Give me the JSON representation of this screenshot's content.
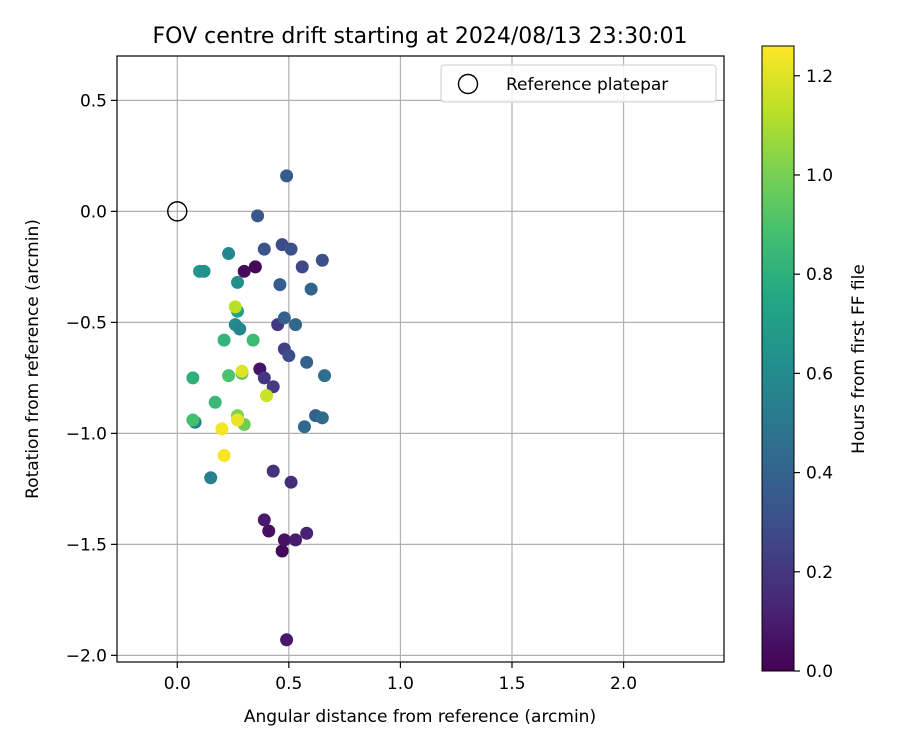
{
  "chart_data": {
    "type": "scatter",
    "title": "FOV centre drift starting at 2024/08/13 23:30:01",
    "xlabel": "Angular distance from reference (arcmin)",
    "ylabel": "Rotation from reference (arcmin)",
    "xlim": [
      -0.27,
      2.45
    ],
    "ylim": [
      -2.03,
      0.7
    ],
    "xticks": [
      0.0,
      0.5,
      1.0,
      1.5,
      2.0
    ],
    "xtick_labels": [
      "0.0",
      "0.5",
      "1.0",
      "1.5",
      "2.0"
    ],
    "yticks": [
      0.5,
      0.0,
      -0.5,
      -1.0,
      -1.5,
      -2.0
    ],
    "ytick_labels": [
      "0.5",
      "0.0",
      "−0.5",
      "−1.0",
      "−1.5",
      "−2.0"
    ],
    "grid": true,
    "legend": {
      "placement": "top-right",
      "entries": [
        "Reference platepar"
      ]
    },
    "reference_point": {
      "x": 0.0,
      "y": 0.0
    },
    "colorbar": {
      "label": "Hours from first FF file",
      "colormap": "viridis",
      "range": [
        0.0,
        1.26
      ],
      "ticks": [
        0.0,
        0.2,
        0.4,
        0.6,
        0.8,
        1.0,
        1.2
      ],
      "tick_labels": [
        "0.0",
        "0.2",
        "0.4",
        "0.6",
        "0.8",
        "1.0",
        "1.2"
      ]
    },
    "points": [
      {
        "x": 0.49,
        "y": -1.93,
        "c": 0.08
      },
      {
        "x": 0.47,
        "y": -1.53,
        "c": 0.03
      },
      {
        "x": 0.48,
        "y": -1.48,
        "c": 0.06
      },
      {
        "x": 0.53,
        "y": -1.48,
        "c": 0.1
      },
      {
        "x": 0.58,
        "y": -1.45,
        "c": 0.12
      },
      {
        "x": 0.41,
        "y": -1.44,
        "c": 0.05
      },
      {
        "x": 0.39,
        "y": -1.39,
        "c": 0.09
      },
      {
        "x": 0.51,
        "y": -1.22,
        "c": 0.16
      },
      {
        "x": 0.43,
        "y": -1.17,
        "c": 0.18
      },
      {
        "x": 0.3,
        "y": -0.27,
        "c": 0.04
      },
      {
        "x": 0.35,
        "y": -0.25,
        "c": 0.02
      },
      {
        "x": 0.37,
        "y": -0.71,
        "c": 0.07
      },
      {
        "x": 0.39,
        "y": -0.75,
        "c": 0.2
      },
      {
        "x": 0.43,
        "y": -0.79,
        "c": 0.22
      },
      {
        "x": 0.45,
        "y": -0.51,
        "c": 0.21
      },
      {
        "x": 0.48,
        "y": -0.62,
        "c": 0.23
      },
      {
        "x": 0.5,
        "y": -0.65,
        "c": 0.3
      },
      {
        "x": 0.49,
        "y": 0.16,
        "c": 0.36
      },
      {
        "x": 0.36,
        "y": -0.02,
        "c": 0.34
      },
      {
        "x": 0.39,
        "y": -0.17,
        "c": 0.33
      },
      {
        "x": 0.47,
        "y": -0.15,
        "c": 0.29
      },
      {
        "x": 0.51,
        "y": -0.17,
        "c": 0.32
      },
      {
        "x": 0.56,
        "y": -0.25,
        "c": 0.28
      },
      {
        "x": 0.65,
        "y": -0.22,
        "c": 0.31
      },
      {
        "x": 0.46,
        "y": -0.33,
        "c": 0.37
      },
      {
        "x": 0.6,
        "y": -0.35,
        "c": 0.41
      },
      {
        "x": 0.48,
        "y": -0.48,
        "c": 0.39
      },
      {
        "x": 0.53,
        "y": -0.51,
        "c": 0.42
      },
      {
        "x": 0.58,
        "y": -0.68,
        "c": 0.4
      },
      {
        "x": 0.66,
        "y": -0.74,
        "c": 0.46
      },
      {
        "x": 0.62,
        "y": -0.92,
        "c": 0.38
      },
      {
        "x": 0.65,
        "y": -0.93,
        "c": 0.44
      },
      {
        "x": 0.57,
        "y": -0.97,
        "c": 0.43
      },
      {
        "x": 0.23,
        "y": -0.19,
        "c": 0.58
      },
      {
        "x": 0.27,
        "y": -0.32,
        "c": 0.62
      },
      {
        "x": 0.1,
        "y": -0.27,
        "c": 0.66
      },
      {
        "x": 0.12,
        "y": -0.27,
        "c": 0.63
      },
      {
        "x": 0.26,
        "y": -0.51,
        "c": 0.6
      },
      {
        "x": 0.28,
        "y": -0.53,
        "c": 0.57
      },
      {
        "x": 0.27,
        "y": -0.45,
        "c": 0.72
      },
      {
        "x": 0.08,
        "y": -0.95,
        "c": 0.55
      },
      {
        "x": 0.15,
        "y": -1.2,
        "c": 0.56
      },
      {
        "x": 0.21,
        "y": -0.58,
        "c": 0.82
      },
      {
        "x": 0.34,
        "y": -0.58,
        "c": 0.86
      },
      {
        "x": 0.07,
        "y": -0.94,
        "c": 0.88
      },
      {
        "x": 0.17,
        "y": -0.86,
        "c": 0.84
      },
      {
        "x": 0.07,
        "y": -0.75,
        "c": 0.8
      },
      {
        "x": 0.23,
        "y": -0.74,
        "c": 0.9
      },
      {
        "x": 0.29,
        "y": -0.73,
        "c": 0.93
      },
      {
        "x": 0.3,
        "y": -0.96,
        "c": 0.98
      },
      {
        "x": 0.27,
        "y": -0.92,
        "c": 1.02
      },
      {
        "x": 0.26,
        "y": -0.43,
        "c": 1.13
      },
      {
        "x": 0.29,
        "y": -0.72,
        "c": 1.2
      },
      {
        "x": 0.4,
        "y": -0.83,
        "c": 1.16
      },
      {
        "x": 0.27,
        "y": -0.94,
        "c": 1.22
      },
      {
        "x": 0.2,
        "y": -0.98,
        "c": 1.24
      },
      {
        "x": 0.21,
        "y": -1.1,
        "c": 1.25
      }
    ]
  }
}
